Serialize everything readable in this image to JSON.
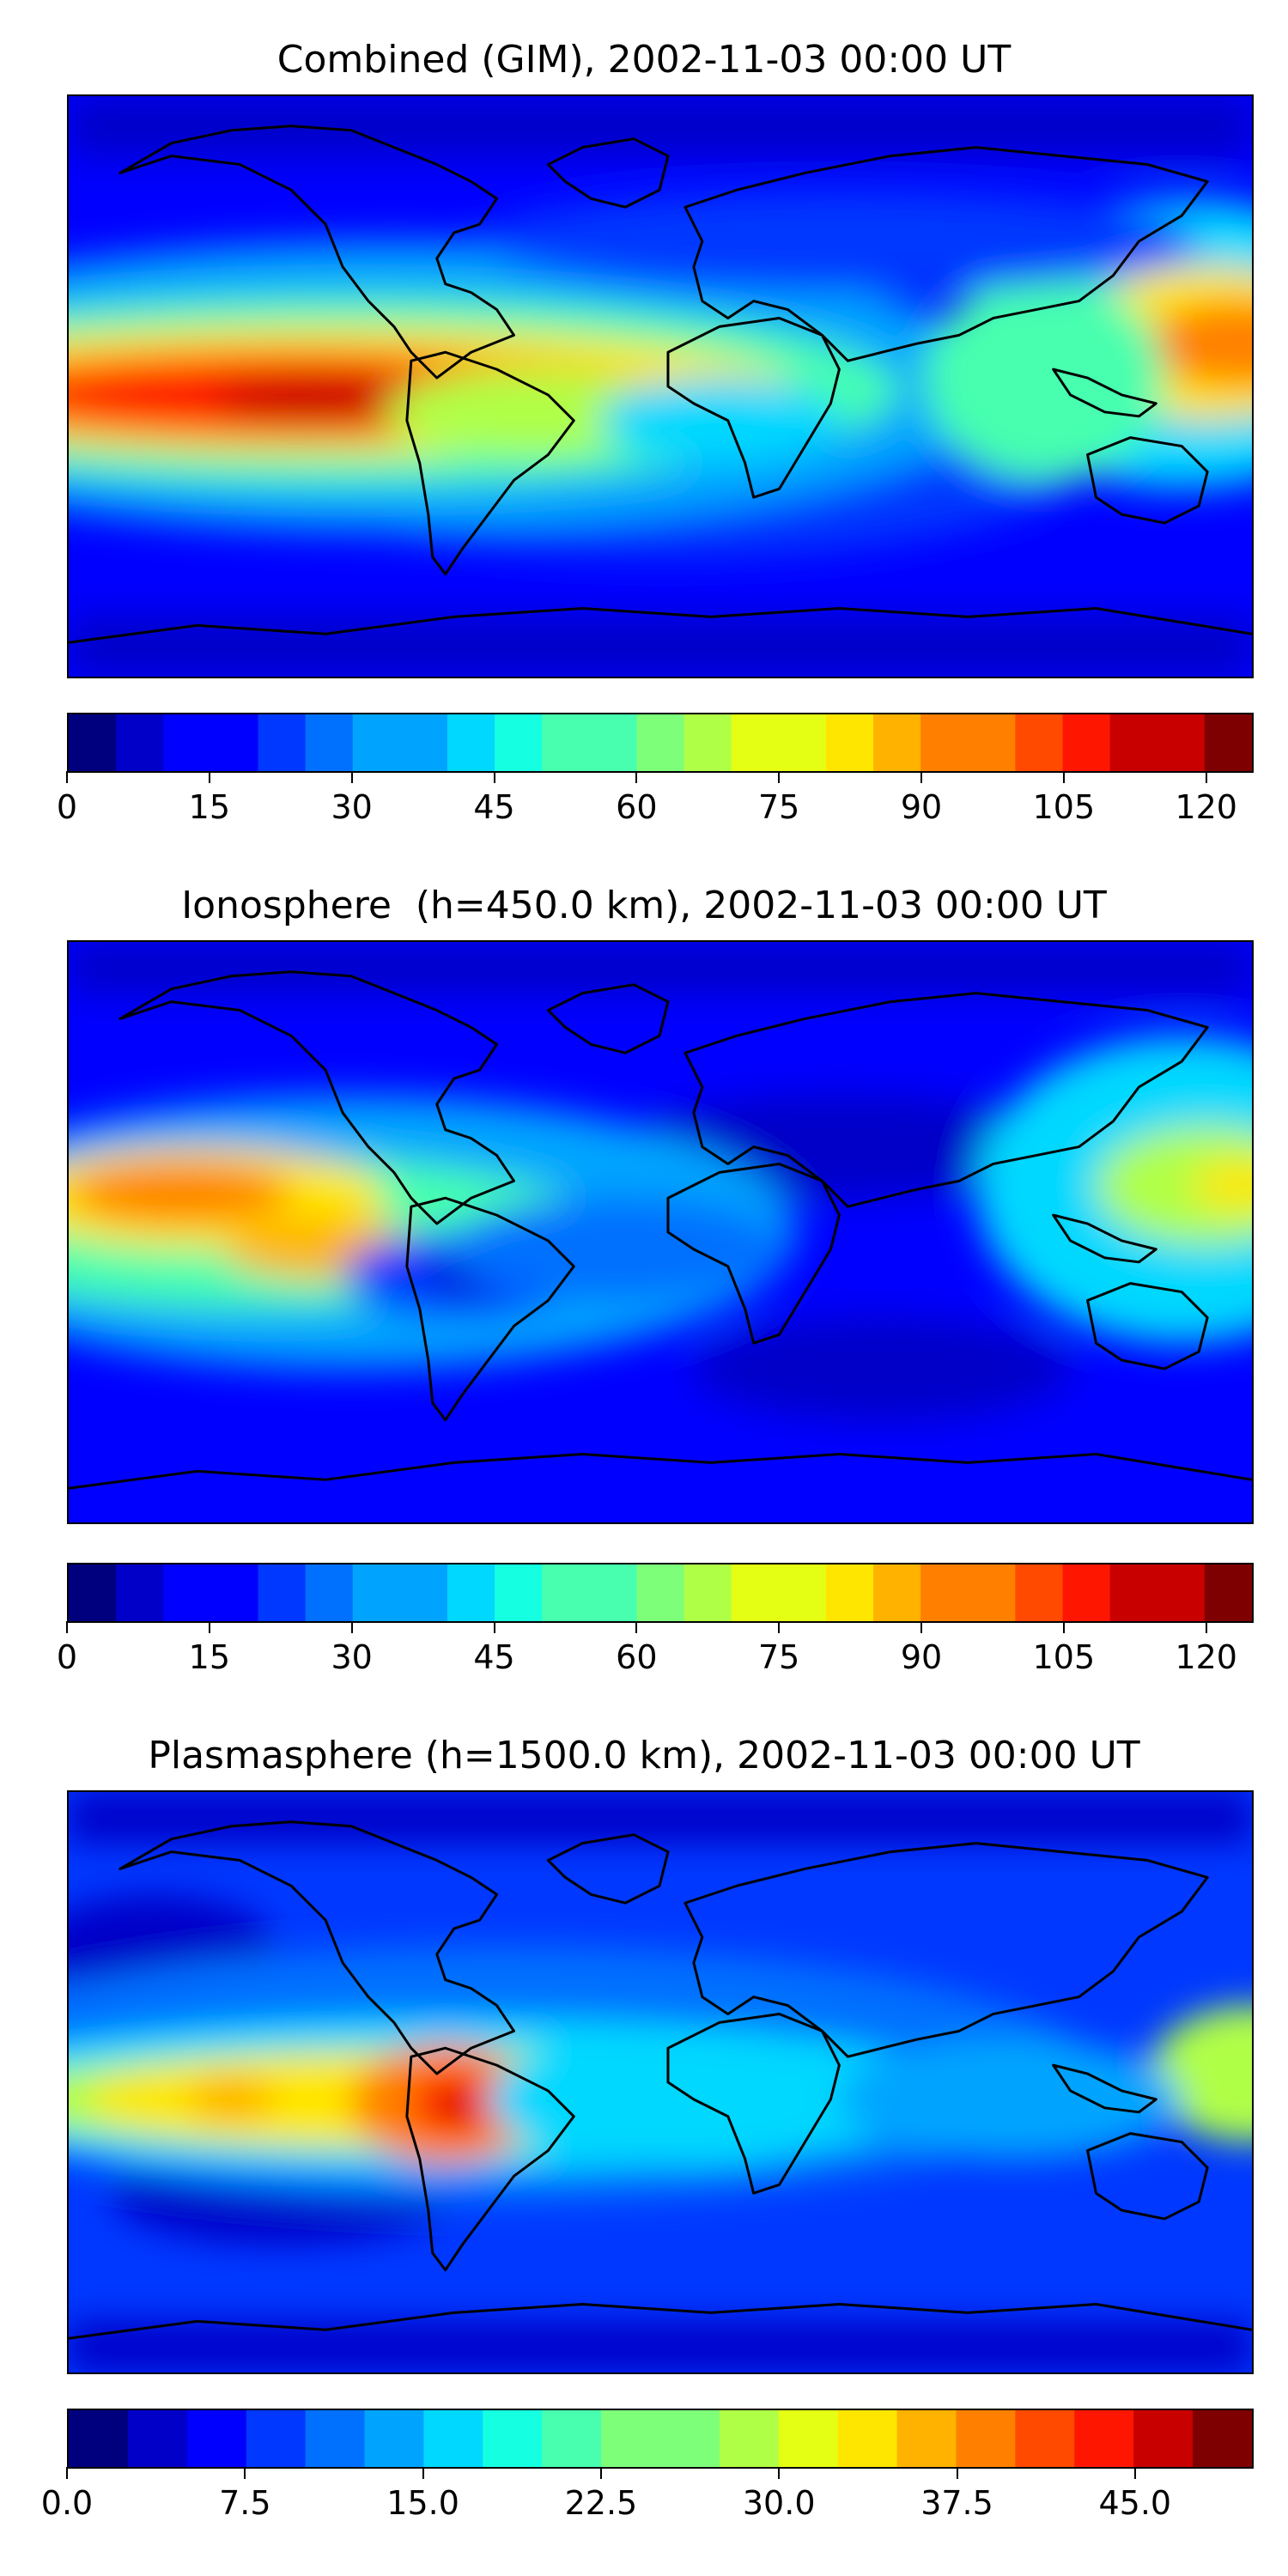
{
  "palette": [
    "#00007f",
    "#0000c8",
    "#0000ff",
    "#0038ff",
    "#0070ff",
    "#00a4ff",
    "#00d8ff",
    "#15ffe1",
    "#47ffaf",
    "#7dff7a",
    "#b0ff47",
    "#e4ff13",
    "#ffe600",
    "#ffb200",
    "#ff8000",
    "#ff4a00",
    "#ff1600",
    "#c80000",
    "#7f0000"
  ],
  "coastline_color": "#000000",
  "panels": [
    {
      "title": "Combined (GIM), 2002-11-03 00:00 UT",
      "colorbar": {
        "ticks": [
          "0",
          "15",
          "30",
          "45",
          "60",
          "75",
          "90",
          "105",
          "120"
        ],
        "tick_values": [
          0,
          15,
          30,
          45,
          60,
          75,
          90,
          105,
          120
        ],
        "min": 0,
        "max": 125,
        "levels": 25
      }
    },
    {
      "title": "Ionosphere  (h=450.0 km), 2002-11-03 00:00 UT",
      "colorbar": {
        "ticks": [
          "0",
          "15",
          "30",
          "45",
          "60",
          "75",
          "90",
          "105",
          "120"
        ],
        "tick_values": [
          0,
          15,
          30,
          45,
          60,
          75,
          90,
          105,
          120
        ],
        "min": 0,
        "max": 125,
        "levels": 25
      }
    },
    {
      "title": "Plasmasphere (h=1500.0 km), 2002-11-03 00:00 UT",
      "colorbar": {
        "ticks": [
          "0.0",
          "7.5",
          "15.0",
          "22.5",
          "30.0",
          "37.5",
          "45.0"
        ],
        "tick_values": [
          0,
          7.5,
          15,
          22.5,
          30,
          37.5,
          45
        ],
        "min": 0,
        "max": 50,
        "levels": 20
      }
    }
  ]
}
